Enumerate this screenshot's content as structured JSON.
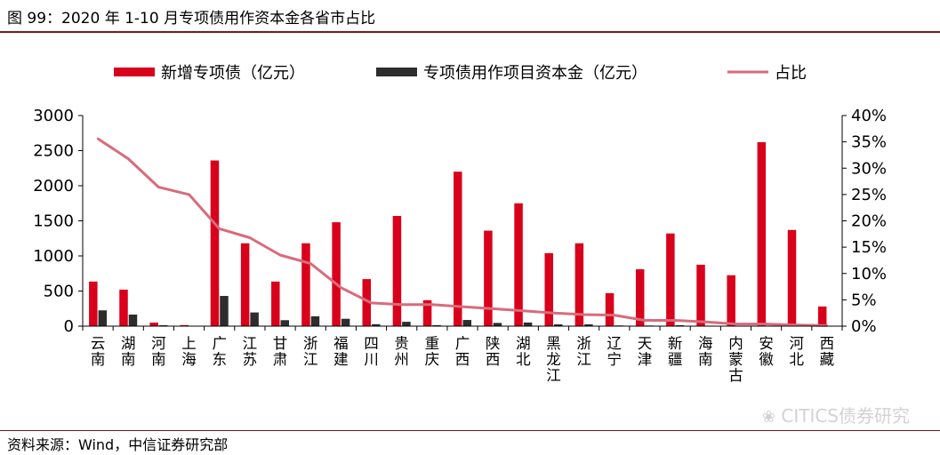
{
  "figure_title": "图 99：2020 年 1-10 月专项债用作资本金各省市占比",
  "source_note": "资料来源：Wind，中信证券研究部",
  "watermark": "CITICS债券研究",
  "colors": {
    "new_bonds": "#d9001b",
    "capital": "#2d2d2d",
    "ratio": "#d96a7a",
    "rule": "#7a1a1a"
  },
  "chart_data": {
    "type": "bar",
    "categories": [
      "云南",
      "湖南",
      "河南",
      "上海",
      "广东",
      "江苏",
      "甘肃",
      "浙江",
      "福建",
      "四川",
      "贵州",
      "重庆",
      "广西",
      "陕西",
      "湖北",
      "黑龙江",
      "浙江",
      "辽宁",
      "天津",
      "新疆",
      "海南",
      "内蒙古",
      "安徽",
      "河北",
      "西藏"
    ],
    "series": [
      {
        "name": "新增专项债（亿元）",
        "type": "bar",
        "axis": "left",
        "values": [
          635,
          520,
          50,
          15,
          2360,
          1180,
          635,
          1180,
          1480,
          670,
          1570,
          370,
          2200,
          1360,
          1750,
          1040,
          1180,
          470,
          810,
          1320,
          875,
          725,
          2620,
          1370,
          280
        ]
      },
      {
        "name": "专项债用作项目资本金（亿元）",
        "type": "bar",
        "axis": "left",
        "values": [
          225,
          165,
          13,
          4,
          430,
          195,
          85,
          140,
          105,
          28,
          62,
          14,
          88,
          46,
          52,
          26,
          26,
          10,
          9,
          13,
          7,
          3,
          6,
          3,
          1
        ]
      },
      {
        "name": "占比",
        "type": "line",
        "axis": "right",
        "values": [
          0.356,
          0.318,
          0.264,
          0.25,
          0.185,
          0.168,
          0.135,
          0.119,
          0.073,
          0.044,
          0.041,
          0.041,
          0.037,
          0.033,
          0.029,
          0.025,
          0.022,
          0.021,
          0.011,
          0.011,
          0.008,
          0.004,
          0.004,
          0.002,
          0.001
        ]
      }
    ],
    "y_left": {
      "min": 0,
      "max": 3000,
      "ticks": [
        "0",
        "500",
        "1000",
        "1500",
        "2000",
        "2500",
        "3000"
      ]
    },
    "y_right": {
      "min": 0,
      "max": 0.4,
      "ticks": [
        "0%",
        "5%",
        "10%",
        "15%",
        "20%",
        "25%",
        "30%",
        "35%",
        "40%"
      ]
    },
    "legend_position": "top",
    "grid": false
  }
}
